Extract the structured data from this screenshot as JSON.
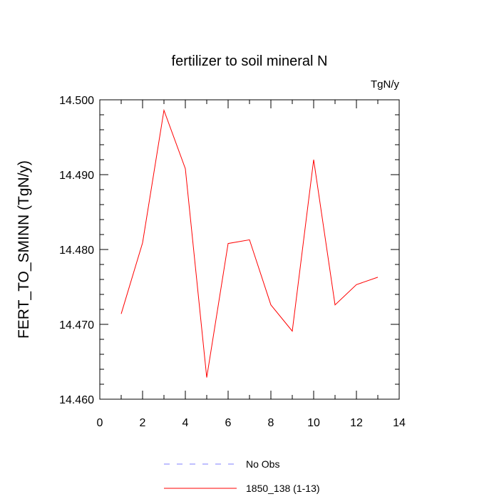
{
  "chart_data": {
    "type": "line",
    "title": "fertilizer to soil mineral N",
    "units_label": "TgN/y",
    "ylabel": "FERT_TO_SMINN  (TgN/y)",
    "xlabel": "",
    "xlim": [
      0,
      14
    ],
    "ylim": [
      14.46,
      14.5
    ],
    "x_ticks": [
      0,
      2,
      4,
      6,
      8,
      10,
      12,
      14
    ],
    "y_ticks": [
      14.46,
      14.47,
      14.48,
      14.49,
      14.5
    ],
    "y_tick_labels": [
      "14.460",
      "14.470",
      "14.480",
      "14.490",
      "14.500"
    ],
    "grid": false,
    "legend_position": "bottom",
    "series": [
      {
        "name": "1850_138 (1-13)",
        "color": "#ff0000",
        "style": "solid",
        "x": [
          1,
          2,
          3,
          4,
          5,
          6,
          7,
          8,
          9,
          10,
          11,
          12,
          13
        ],
        "values": [
          14.4714,
          14.4809,
          14.4986,
          14.4908,
          14.4629,
          14.4808,
          14.4813,
          14.4726,
          14.4691,
          14.492,
          14.4726,
          14.4753,
          14.4763
        ]
      }
    ],
    "legend": [
      {
        "label": "No Obs",
        "color": "#8080ff",
        "style": "dashed"
      },
      {
        "label": "1850_138 (1-13)",
        "color": "#ff0000",
        "style": "solid"
      }
    ]
  }
}
